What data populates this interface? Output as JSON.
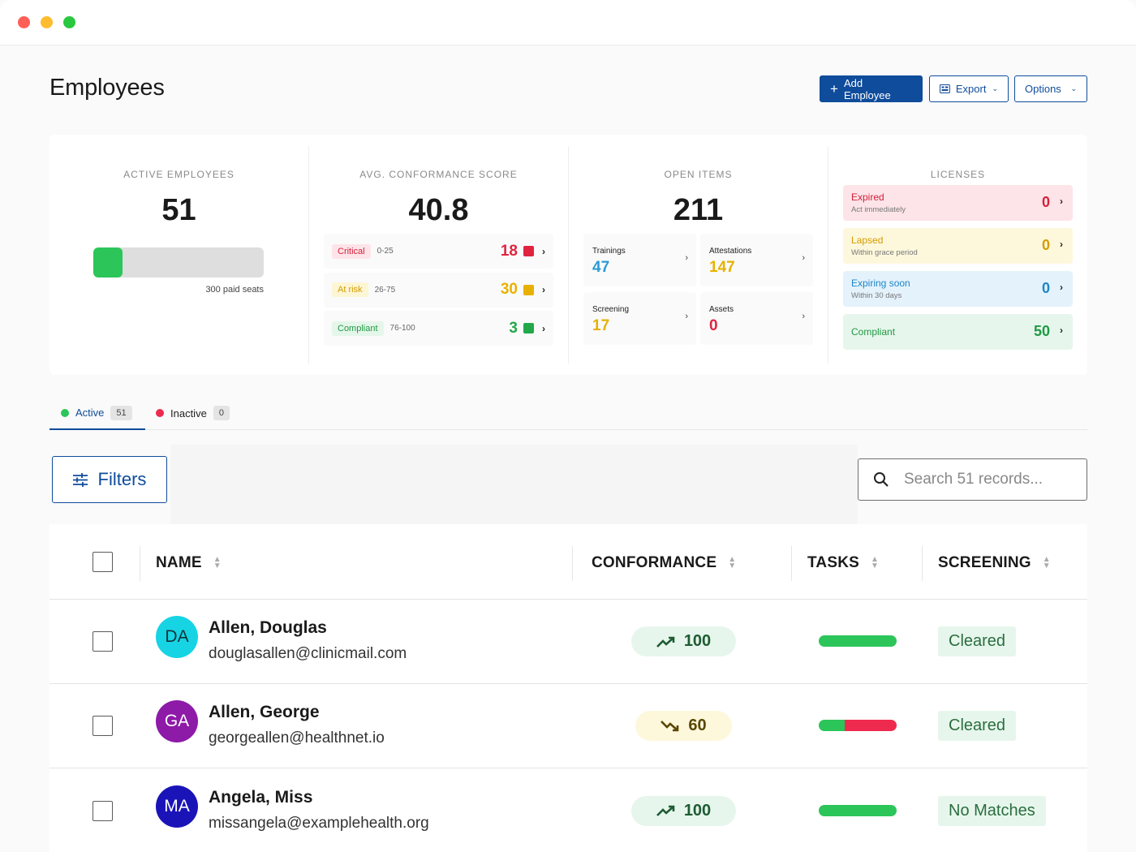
{
  "page": {
    "title": "Employees"
  },
  "header_buttons": {
    "add_employee": "Add Employee",
    "export": "Export",
    "options": "Options"
  },
  "stats": {
    "active_employees": {
      "label": "ACTIVE EMPLOYEES",
      "value": "51",
      "seats_caption": "300 paid seats",
      "seats_used_fraction": 0.17
    },
    "conformance": {
      "label": "AVG. CONFORMANCE SCORE",
      "value": "40.8",
      "rows": [
        {
          "name": "Critical",
          "range": "0-25",
          "count": "18",
          "color": "#e0243f",
          "pill_bg": "#fde4e8",
          "pill_fg": "#d6203b"
        },
        {
          "name": "At risk",
          "range": "26-75",
          "count": "30",
          "color": "#e8b100",
          "pill_bg": "#fdf6d4",
          "pill_fg": "#d49b00"
        },
        {
          "name": "Compliant",
          "range": "76-100",
          "count": "3",
          "color": "#22a84a",
          "pill_bg": "#e5f6ea",
          "pill_fg": "#1f9944"
        }
      ]
    },
    "open_items": {
      "label": "OPEN ITEMS",
      "value": "211",
      "items": [
        {
          "name": "Trainings",
          "count": "47",
          "color": "#2a9bd6"
        },
        {
          "name": "Attestations",
          "count": "147",
          "color": "#e8b100"
        },
        {
          "name": "Screening",
          "count": "17",
          "color": "#e8b100"
        },
        {
          "name": "Assets",
          "count": "0",
          "color": "#e0243f"
        }
      ]
    },
    "licenses": {
      "label": "LICENSES",
      "rows": [
        {
          "title": "Expired",
          "subtitle": "Act immediately",
          "count": "0",
          "bg": "#fde4e8",
          "fg": "#d6203b"
        },
        {
          "title": "Lapsed",
          "subtitle": "Within grace period",
          "count": "0",
          "bg": "#fdf8dc",
          "fg": "#d49b00"
        },
        {
          "title": "Expiring soon",
          "subtitle": "Within 30 days",
          "count": "0",
          "bg": "#e4f2fb",
          "fg": "#1d86c8"
        },
        {
          "title": "Compliant",
          "subtitle": "",
          "count": "50",
          "bg": "#e7f6ec",
          "fg": "#1f9944"
        }
      ]
    }
  },
  "tabs": [
    {
      "label": "Active",
      "count": "51",
      "dot": "#2cc55a"
    },
    {
      "label": "Inactive",
      "count": "0",
      "dot": "#ee2b4f"
    }
  ],
  "toolbar": {
    "filters_label": "Filters",
    "search_placeholder": "Search 51 records..."
  },
  "table": {
    "columns": [
      "NAME",
      "CONFORMANCE",
      "TASKS",
      "SCREENING"
    ],
    "rows": [
      {
        "initials": "DA",
        "avatar_bg": "#17d4e4",
        "avatar_fg": "#10333a",
        "name": "Allen, Douglas",
        "email": "douglasallen@clinicmail.com",
        "conformance": "100",
        "trend": "up",
        "tasks_complete_fraction": 1.0,
        "screening": "Cleared"
      },
      {
        "initials": "GA",
        "avatar_bg": "#8e1aa8",
        "avatar_fg": "#ffffff",
        "name": "Allen, George",
        "email": "georgeallen@healthnet.io",
        "conformance": "60",
        "trend": "down",
        "tasks_complete_fraction": 0.33,
        "screening": "Cleared"
      },
      {
        "initials": "MA",
        "avatar_bg": "#1a14b8",
        "avatar_fg": "#ffffff",
        "name": "Angela, Miss",
        "email": "missangela@examplehealth.org",
        "conformance": "100",
        "trend": "up",
        "tasks_complete_fraction": 1.0,
        "screening": "No Matches"
      }
    ]
  },
  "colors": {
    "brand": "#0f4c9b",
    "positive": "#2cc55a",
    "negative": "#ee2b4f"
  }
}
